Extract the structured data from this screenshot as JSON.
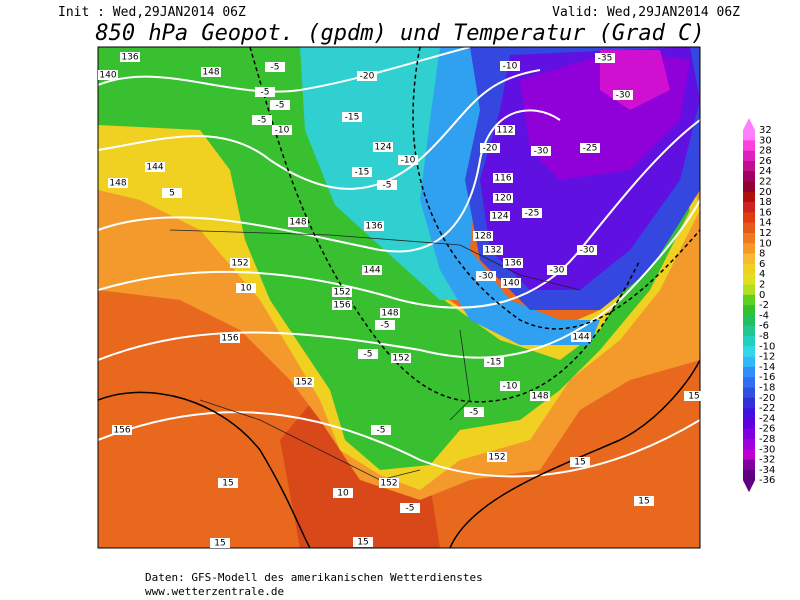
{
  "header": {
    "init": "Init : Wed,29JAN2014 06Z",
    "valid": "Valid: Wed,29JAN2014 06Z",
    "title": "850 hPa Geopot. (gpdm) und Temperatur (Grad C)"
  },
  "colorbar": {
    "labels": [
      "32",
      "30",
      "28",
      "26",
      "24",
      "22",
      "20",
      "18",
      "16",
      "14",
      "12",
      "10",
      "8",
      "6",
      "4",
      "2",
      "0",
      "-2",
      "-4",
      "-6",
      "-8",
      "-10",
      "-12",
      "-14",
      "-16",
      "-18",
      "-20",
      "-22",
      "-24",
      "-26",
      "-28",
      "-30",
      "-32",
      "-34",
      "-36"
    ],
    "colors": [
      "#ff80ff",
      "#ff40e0",
      "#e020c0",
      "#c01090",
      "#a00060",
      "#900030",
      "#b01010",
      "#d02020",
      "#e03c10",
      "#e85818",
      "#f07820",
      "#f59828",
      "#f8b830",
      "#f0d020",
      "#e0e020",
      "#b0e020",
      "#60d020",
      "#30c030",
      "#20c060",
      "#20c890",
      "#20d0c0",
      "#30d8e8",
      "#30b8f8",
      "#3090f8",
      "#3070f0",
      "#3050e0",
      "#3030d8",
      "#4010e0",
      "#6000e0",
      "#8000e0",
      "#a000e0",
      "#c000d0",
      "#8000a0",
      "#600080"
    ]
  },
  "map": {
    "contour_labels": [
      "136",
      "140",
      "148",
      "-5",
      "-5",
      "-5",
      "-5",
      "-10",
      "-20",
      "-15",
      "124",
      "-10",
      "-15",
      "-5",
      "144",
      "148",
      "5",
      "-10",
      "-35",
      "-30",
      "112",
      "-20",
      "-30",
      "-25",
      "116",
      "120",
      "124",
      "-25",
      "128",
      "132",
      "136",
      "-30",
      "-30",
      "-30",
      "140",
      "136",
      "148",
      "152",
      "144",
      "10",
      "152",
      "156",
      "148",
      "-5",
      "152",
      "-5",
      "-15",
      "-10",
      "144",
      "148",
      "-5",
      "156",
      "152",
      "156",
      "-5",
      "152",
      "15",
      "15",
      "152",
      "10",
      "-5",
      "15",
      "15",
      "15",
      "15"
    ]
  },
  "footer": {
    "line1": "Daten: GFS-Modell des amerikanischen Wetterdienstes",
    "line2": "www.wetterzentrale.de"
  }
}
